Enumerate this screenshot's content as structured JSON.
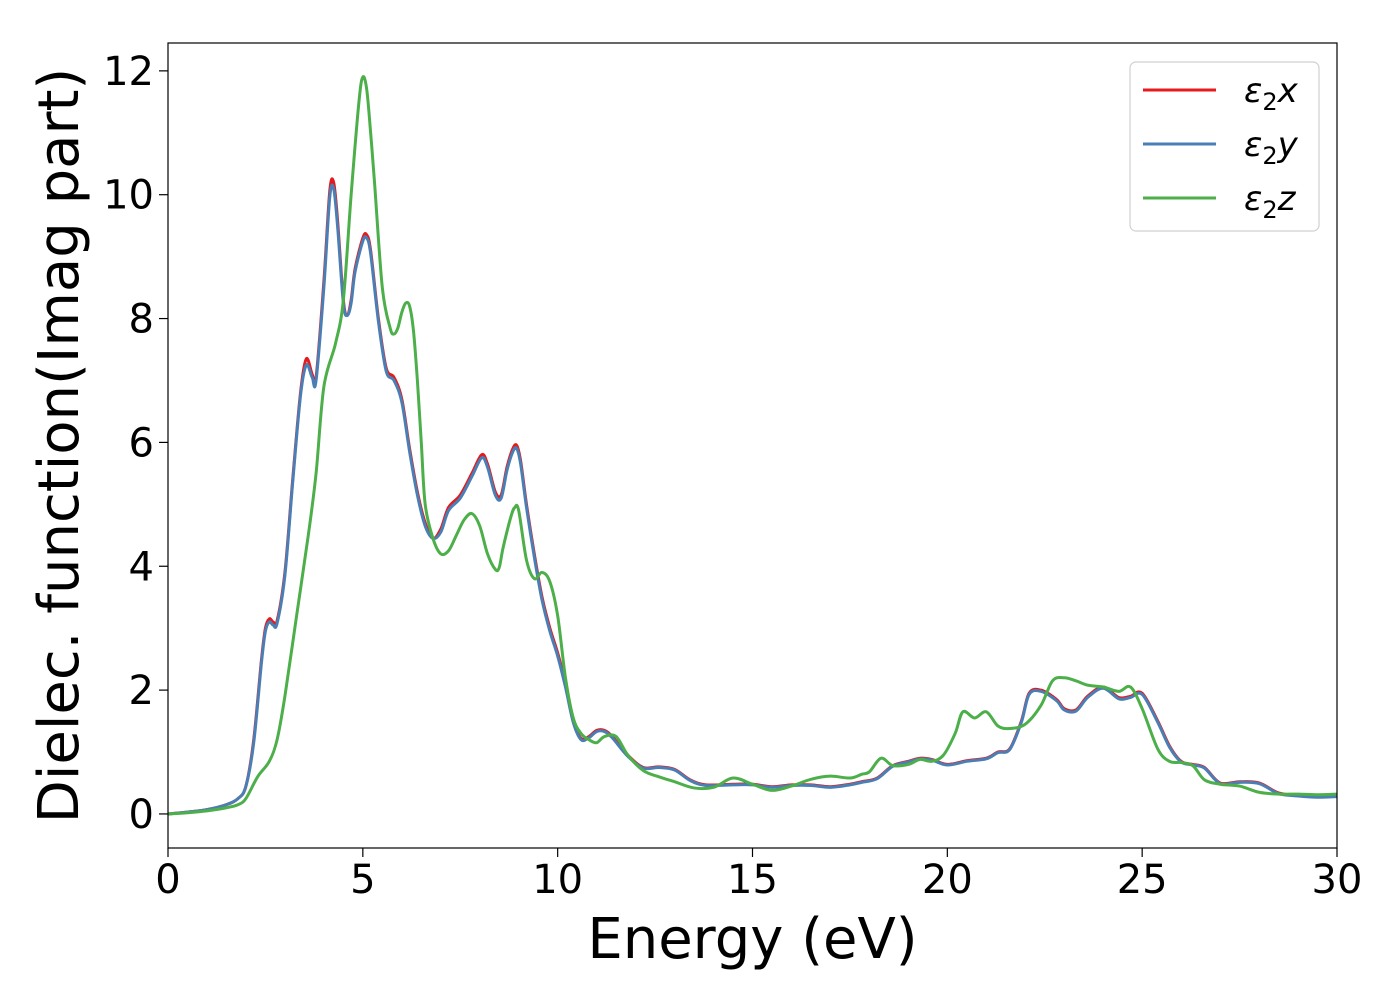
{
  "chart_data": {
    "type": "line",
    "title": "",
    "xlabel": "Energy (eV)",
    "ylabel": "Dielec. function(Imag part)",
    "xlim": [
      0,
      30
    ],
    "ylim": [
      -0.55,
      12.45
    ],
    "xticks": [
      0,
      5,
      10,
      15,
      20,
      25,
      30
    ],
    "yticks": [
      0,
      2,
      4,
      6,
      8,
      10,
      12
    ],
    "grid": false,
    "legend_position": "top-right",
    "series": [
      {
        "name": "ε2x",
        "legend_base": "ε",
        "legend_sub": "2",
        "legend_suffix": "x",
        "color": "#e41a1c",
        "x": [
          0,
          0.5,
          1.0,
          1.5,
          1.8,
          2.0,
          2.2,
          2.4,
          2.5,
          2.6,
          2.7,
          2.8,
          3.0,
          3.2,
          3.4,
          3.55,
          3.7,
          3.8,
          4.0,
          4.15,
          4.25,
          4.35,
          4.5,
          4.6,
          4.7,
          4.8,
          5.0,
          5.1,
          5.2,
          5.4,
          5.6,
          5.8,
          6.0,
          6.2,
          6.4,
          6.6,
          6.8,
          7.0,
          7.2,
          7.5,
          7.8,
          8.05,
          8.2,
          8.4,
          8.55,
          8.7,
          8.85,
          8.95,
          9.05,
          9.2,
          9.4,
          9.6,
          9.8,
          10.0,
          10.2,
          10.4,
          10.6,
          10.8,
          11.0,
          11.2,
          11.4,
          11.8,
          12.2,
          12.6,
          13.0,
          13.4,
          13.8,
          14.5,
          15.0,
          15.5,
          16.0,
          16.5,
          17.0,
          17.5,
          17.8,
          18.2,
          18.6,
          19.0,
          19.3,
          19.6,
          20.0,
          20.5,
          21.0,
          21.3,
          21.6,
          21.9,
          22.1,
          22.4,
          22.8,
          23.0,
          23.3,
          23.6,
          24.0,
          24.4,
          24.7,
          25.0,
          25.4,
          25.7,
          26.0,
          26.3,
          26.6,
          27.0,
          27.5,
          28.0,
          28.5,
          29.0,
          29.5,
          30.0
        ],
        "y": [
          0.0,
          0.03,
          0.07,
          0.15,
          0.25,
          0.45,
          1.2,
          2.5,
          3.0,
          3.15,
          3.1,
          3.12,
          3.9,
          5.4,
          6.8,
          7.35,
          7.1,
          7.05,
          8.6,
          10.05,
          10.2,
          9.6,
          8.3,
          8.05,
          8.3,
          8.8,
          9.3,
          9.35,
          9.1,
          8.0,
          7.2,
          7.05,
          6.7,
          5.9,
          5.2,
          4.7,
          4.45,
          4.6,
          4.95,
          5.15,
          5.5,
          5.8,
          5.65,
          5.2,
          5.15,
          5.6,
          5.9,
          5.95,
          5.7,
          5.0,
          4.2,
          3.5,
          3.0,
          2.6,
          2.1,
          1.5,
          1.22,
          1.25,
          1.35,
          1.35,
          1.25,
          0.95,
          0.75,
          0.76,
          0.72,
          0.55,
          0.47,
          0.48,
          0.48,
          0.44,
          0.47,
          0.47,
          0.44,
          0.48,
          0.52,
          0.58,
          0.78,
          0.85,
          0.9,
          0.88,
          0.8,
          0.86,
          0.9,
          1.0,
          1.05,
          1.5,
          1.95,
          2.0,
          1.85,
          1.7,
          1.68,
          1.9,
          2.05,
          1.88,
          1.9,
          1.95,
          1.5,
          1.1,
          0.85,
          0.8,
          0.75,
          0.5,
          0.52,
          0.5,
          0.34,
          0.3,
          0.28,
          0.29
        ]
      },
      {
        "name": "ε2y",
        "legend_base": "ε",
        "legend_sub": "2",
        "legend_suffix": "y",
        "color": "#4a7fb5",
        "x": [
          0,
          0.5,
          1.0,
          1.5,
          1.8,
          2.0,
          2.2,
          2.4,
          2.5,
          2.6,
          2.7,
          2.8,
          3.0,
          3.2,
          3.4,
          3.55,
          3.7,
          3.8,
          4.0,
          4.15,
          4.25,
          4.35,
          4.5,
          4.6,
          4.7,
          4.8,
          5.0,
          5.1,
          5.2,
          5.4,
          5.6,
          5.8,
          6.0,
          6.2,
          6.4,
          6.6,
          6.8,
          7.0,
          7.2,
          7.5,
          7.8,
          8.05,
          8.2,
          8.4,
          8.55,
          8.7,
          8.85,
          8.95,
          9.05,
          9.2,
          9.4,
          9.6,
          9.8,
          10.0,
          10.2,
          10.4,
          10.6,
          10.8,
          11.0,
          11.2,
          11.4,
          11.8,
          12.2,
          12.6,
          13.0,
          13.4,
          13.8,
          14.5,
          15.0,
          15.5,
          16.0,
          16.5,
          17.0,
          17.5,
          17.8,
          18.2,
          18.6,
          19.0,
          19.3,
          19.6,
          20.0,
          20.5,
          21.0,
          21.3,
          21.6,
          21.9,
          22.1,
          22.4,
          22.8,
          23.0,
          23.3,
          23.6,
          24.0,
          24.4,
          24.7,
          25.0,
          25.4,
          25.7,
          26.0,
          26.3,
          26.6,
          27.0,
          27.5,
          28.0,
          28.5,
          29.0,
          29.5,
          30.0
        ],
        "y": [
          0.0,
          0.03,
          0.07,
          0.15,
          0.25,
          0.45,
          1.15,
          2.45,
          2.95,
          3.1,
          3.05,
          3.08,
          3.85,
          5.35,
          6.75,
          7.25,
          7.05,
          7.0,
          8.5,
          9.95,
          10.1,
          9.5,
          8.25,
          8.05,
          8.25,
          8.75,
          9.25,
          9.3,
          9.05,
          7.95,
          7.15,
          7.0,
          6.65,
          5.85,
          5.15,
          4.65,
          4.45,
          4.55,
          4.9,
          5.1,
          5.45,
          5.75,
          5.6,
          5.15,
          5.1,
          5.55,
          5.85,
          5.9,
          5.65,
          4.95,
          4.15,
          3.45,
          2.95,
          2.55,
          2.05,
          1.48,
          1.2,
          1.23,
          1.33,
          1.33,
          1.23,
          0.93,
          0.74,
          0.75,
          0.71,
          0.54,
          0.46,
          0.47,
          0.47,
          0.43,
          0.46,
          0.46,
          0.43,
          0.47,
          0.51,
          0.57,
          0.77,
          0.84,
          0.89,
          0.87,
          0.79,
          0.85,
          0.89,
          0.99,
          1.04,
          1.48,
          1.93,
          1.98,
          1.83,
          1.68,
          1.66,
          1.88,
          2.03,
          1.86,
          1.88,
          1.93,
          1.48,
          1.08,
          0.84,
          0.79,
          0.74,
          0.49,
          0.51,
          0.49,
          0.33,
          0.29,
          0.27,
          0.28
        ]
      },
      {
        "name": "ε2z",
        "legend_base": "ε",
        "legend_sub": "2",
        "legend_suffix": "z",
        "color": "#4daf4a",
        "x": [
          0,
          0.5,
          1.0,
          1.5,
          1.8,
          2.0,
          2.3,
          2.6,
          2.8,
          3.0,
          3.3,
          3.6,
          3.8,
          4.0,
          4.3,
          4.5,
          4.7,
          4.9,
          5.0,
          5.1,
          5.2,
          5.3,
          5.5,
          5.7,
          5.8,
          5.9,
          6.0,
          6.1,
          6.2,
          6.3,
          6.4,
          6.5,
          6.6,
          6.8,
          7.0,
          7.2,
          7.4,
          7.6,
          7.8,
          8.0,
          8.2,
          8.4,
          8.5,
          8.6,
          8.8,
          8.9,
          9.0,
          9.2,
          9.4,
          9.6,
          9.8,
          10.0,
          10.2,
          10.4,
          10.6,
          10.8,
          11.0,
          11.2,
          11.5,
          11.8,
          12.2,
          12.6,
          13.0,
          13.5,
          14.0,
          14.5,
          15.0,
          15.5,
          16.0,
          16.5,
          17.0,
          17.5,
          17.8,
          18.0,
          18.3,
          18.6,
          19.0,
          19.3,
          19.6,
          19.9,
          20.2,
          20.4,
          20.7,
          21.0,
          21.3,
          21.6,
          22.0,
          22.4,
          22.7,
          23.0,
          23.3,
          23.6,
          24.0,
          24.4,
          24.7,
          25.0,
          25.4,
          25.7,
          26.0,
          26.3,
          26.6,
          27.0,
          27.5,
          28.0,
          28.5,
          29.0,
          29.5,
          30.0
        ],
        "y": [
          0.0,
          0.02,
          0.05,
          0.1,
          0.15,
          0.25,
          0.6,
          0.85,
          1.2,
          1.9,
          3.2,
          4.5,
          5.5,
          6.9,
          7.6,
          8.3,
          10.0,
          11.5,
          11.9,
          11.7,
          11.0,
          10.2,
          8.5,
          7.85,
          7.75,
          7.85,
          8.1,
          8.25,
          8.2,
          7.8,
          7.0,
          6.0,
          5.0,
          4.45,
          4.2,
          4.25,
          4.5,
          4.75,
          4.85,
          4.65,
          4.2,
          3.95,
          3.98,
          4.3,
          4.8,
          4.95,
          4.9,
          4.1,
          3.8,
          3.9,
          3.75,
          3.2,
          2.2,
          1.55,
          1.3,
          1.2,
          1.15,
          1.25,
          1.25,
          0.95,
          0.7,
          0.6,
          0.52,
          0.42,
          0.43,
          0.58,
          0.48,
          0.38,
          0.45,
          0.56,
          0.61,
          0.58,
          0.64,
          0.68,
          0.9,
          0.78,
          0.8,
          0.88,
          0.85,
          0.95,
          1.3,
          1.65,
          1.55,
          1.65,
          1.42,
          1.38,
          1.45,
          1.75,
          2.15,
          2.2,
          2.15,
          2.08,
          2.05,
          1.98,
          2.05,
          1.7,
          1.05,
          0.85,
          0.83,
          0.78,
          0.55,
          0.48,
          0.45,
          0.35,
          0.32,
          0.32,
          0.31,
          0.32
        ]
      }
    ]
  }
}
